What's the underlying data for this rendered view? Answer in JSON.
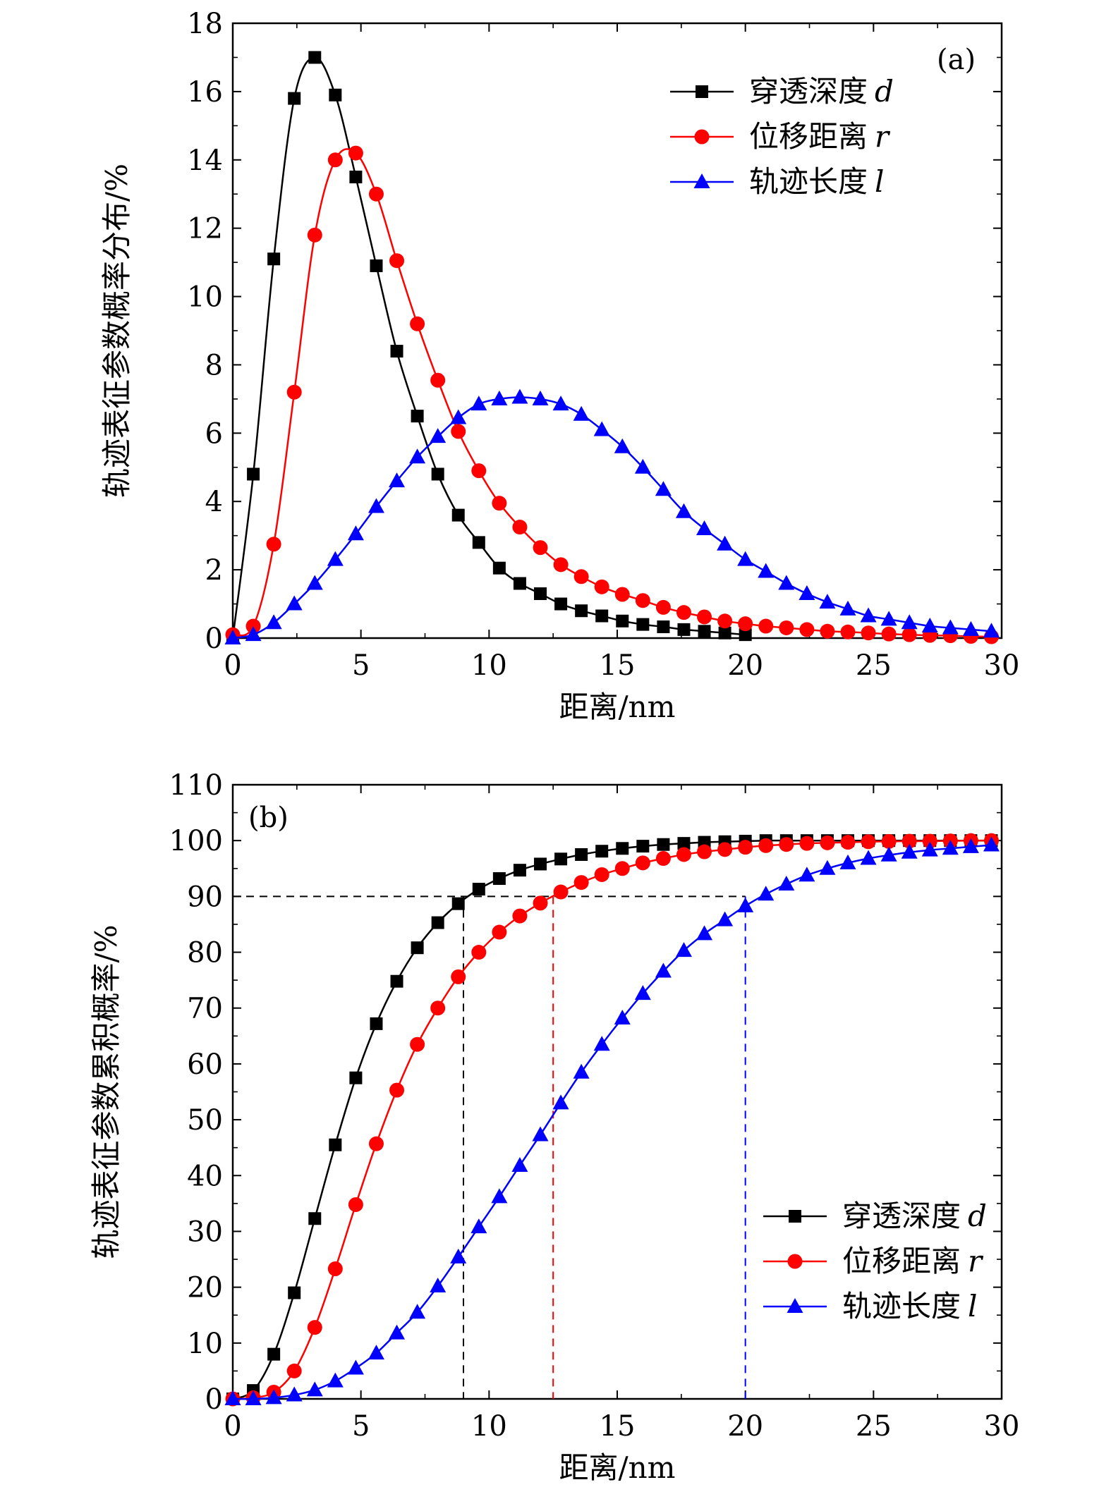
{
  "chart_data": [
    {
      "panel": "a",
      "type": "line",
      "panel_label": "(a)",
      "title": "",
      "xlabel": "距离/nm",
      "ylabel": "轨迹表征参数概率分布/%",
      "xlim": [
        0,
        30
      ],
      "ylim": [
        0,
        18
      ],
      "xticks": [
        0,
        5,
        10,
        15,
        20,
        25,
        30
      ],
      "yticks": [
        0,
        2,
        4,
        6,
        8,
        10,
        12,
        14,
        16,
        18
      ],
      "legend_position": "top-right",
      "series": [
        {
          "name": "穿透深度",
          "var": "d",
          "color": "#000000",
          "marker": "square",
          "x": [
            0,
            0.8,
            1.6,
            2.4,
            3.2,
            4.0,
            4.8,
            5.6,
            6.4,
            7.2,
            8.0,
            8.8,
            9.6,
            10.4,
            11.2,
            12.0,
            12.8,
            13.6,
            14.4,
            15.2,
            16.0,
            16.8,
            17.6,
            18.4,
            19.2,
            20.0
          ],
          "y": [
            0,
            4.8,
            11.1,
            15.8,
            17.0,
            15.9,
            13.5,
            10.9,
            8.4,
            6.5,
            4.8,
            3.6,
            2.8,
            2.05,
            1.6,
            1.3,
            1.0,
            0.8,
            0.65,
            0.5,
            0.4,
            0.33,
            0.25,
            0.2,
            0.15,
            0.1
          ]
        },
        {
          "name": "位移距离",
          "var": "r",
          "color": "#ff0000",
          "marker": "circle",
          "x": [
            0,
            0.8,
            1.6,
            2.4,
            3.2,
            4.0,
            4.8,
            5.6,
            6.4,
            7.2,
            8.0,
            8.8,
            9.6,
            10.4,
            11.2,
            12.0,
            12.8,
            13.6,
            14.4,
            15.2,
            16.0,
            16.8,
            17.6,
            18.4,
            19.2,
            20.0,
            20.8,
            21.6,
            22.4,
            23.2,
            24.0,
            24.8,
            25.6,
            26.4,
            27.2,
            28.0,
            28.8,
            29.6
          ],
          "y": [
            0.1,
            0.35,
            2.75,
            7.2,
            11.8,
            14.0,
            14.2,
            13.0,
            11.05,
            9.2,
            7.55,
            6.05,
            4.9,
            3.95,
            3.25,
            2.65,
            2.15,
            1.8,
            1.5,
            1.28,
            1.1,
            0.9,
            0.75,
            0.62,
            0.5,
            0.42,
            0.35,
            0.3,
            0.25,
            0.2,
            0.18,
            0.15,
            0.12,
            0.1,
            0.08,
            0.07,
            0.05,
            0.04
          ]
        },
        {
          "name": "轨迹长度",
          "var": "l",
          "color": "#0000ff",
          "marker": "triangle",
          "x": [
            0,
            0.8,
            1.6,
            2.4,
            3.2,
            4.0,
            4.8,
            5.6,
            6.4,
            7.2,
            8.0,
            8.8,
            9.6,
            10.4,
            11.2,
            12.0,
            12.8,
            13.6,
            14.4,
            15.2,
            16.0,
            16.8,
            17.6,
            18.4,
            19.2,
            20.0,
            20.8,
            21.6,
            22.4,
            23.2,
            24.0,
            24.8,
            25.6,
            26.4,
            27.2,
            28.0,
            28.8,
            29.6
          ],
          "y": [
            0,
            0.1,
            0.45,
            1.0,
            1.6,
            2.3,
            3.05,
            3.85,
            4.6,
            5.3,
            5.9,
            6.45,
            6.85,
            7.0,
            7.05,
            7.0,
            6.85,
            6.55,
            6.1,
            5.6,
            5.0,
            4.35,
            3.7,
            3.2,
            2.75,
            2.3,
            1.95,
            1.6,
            1.3,
            1.05,
            0.85,
            0.65,
            0.55,
            0.45,
            0.35,
            0.3,
            0.25,
            0.2
          ]
        }
      ]
    },
    {
      "panel": "b",
      "type": "line",
      "panel_label": "(b)",
      "title": "",
      "xlabel": "距离/nm",
      "ylabel": "轨迹表征参数累积概率/%",
      "xlim": [
        0,
        30
      ],
      "ylim": [
        0,
        110
      ],
      "xticks": [
        0,
        5,
        10,
        15,
        20,
        25,
        30
      ],
      "yticks": [
        0,
        10,
        20,
        30,
        40,
        50,
        60,
        70,
        80,
        90,
        100,
        110
      ],
      "legend_position": "bottom-right",
      "reference_level": 90,
      "reference_x": [
        9.0,
        12.5,
        20.0
      ],
      "series": [
        {
          "name": "穿透深度",
          "var": "d",
          "color": "#000000",
          "marker": "square",
          "x": [
            0,
            0.8,
            1.6,
            2.4,
            3.2,
            4.0,
            4.8,
            5.6,
            6.4,
            7.2,
            8.0,
            8.8,
            9.6,
            10.4,
            11.2,
            12.0,
            12.8,
            13.6,
            14.4,
            15.2,
            16.0,
            16.8,
            17.6,
            18.4,
            19.2,
            20.0,
            20.8,
            21.6,
            22.4,
            23.2,
            24.0,
            24.8,
            25.6,
            26.4,
            27.2,
            28.0,
            28.8,
            29.6
          ],
          "y": [
            0,
            1.5,
            8.0,
            19.0,
            32.3,
            45.5,
            57.5,
            67.2,
            74.8,
            80.8,
            85.3,
            88.7,
            91.3,
            93.2,
            94.7,
            95.8,
            96.7,
            97.5,
            98.1,
            98.6,
            99.0,
            99.3,
            99.5,
            99.7,
            99.8,
            99.9,
            100,
            100,
            100,
            100,
            100,
            100,
            100,
            100,
            100,
            100,
            100,
            100
          ]
        },
        {
          "name": "位移距离",
          "var": "r",
          "color": "#ff0000",
          "marker": "circle",
          "x": [
            0,
            0.8,
            1.6,
            2.4,
            3.2,
            4.0,
            4.8,
            5.6,
            6.4,
            7.2,
            8.0,
            8.8,
            9.6,
            10.4,
            11.2,
            12.0,
            12.8,
            13.6,
            14.4,
            15.2,
            16.0,
            16.8,
            17.6,
            18.4,
            19.2,
            20.0,
            20.8,
            21.6,
            22.4,
            23.2,
            24.0,
            24.8,
            25.6,
            26.4,
            27.2,
            28.0,
            28.8,
            29.6
          ],
          "y": [
            0,
            0.2,
            1.2,
            5.0,
            12.8,
            23.3,
            34.8,
            45.7,
            55.3,
            63.5,
            70.0,
            75.6,
            80.0,
            83.6,
            86.5,
            88.8,
            90.8,
            92.5,
            93.9,
            95.0,
            96.0,
            96.8,
            97.5,
            98.0,
            98.4,
            98.8,
            99.1,
            99.3,
            99.5,
            99.6,
            99.7,
            99.8,
            99.85,
            99.9,
            99.9,
            99.95,
            100,
            100
          ]
        },
        {
          "name": "轨迹长度",
          "var": "l",
          "color": "#0000ff",
          "marker": "triangle",
          "x": [
            0,
            0.8,
            1.6,
            2.4,
            3.2,
            4.0,
            4.8,
            5.6,
            6.4,
            7.2,
            8.0,
            8.8,
            9.6,
            10.4,
            11.2,
            12.0,
            12.8,
            13.6,
            14.4,
            15.2,
            16.0,
            16.8,
            17.6,
            18.4,
            19.2,
            20.0,
            20.8,
            21.6,
            22.4,
            23.2,
            24.0,
            24.8,
            25.6,
            26.4,
            27.2,
            28.0,
            28.8,
            29.6
          ],
          "y": [
            0,
            0,
            0.2,
            0.7,
            1.6,
            3.2,
            5.5,
            8.2,
            11.8,
            15.5,
            20.2,
            25.4,
            30.8,
            36.2,
            41.8,
            47.3,
            53.0,
            58.5,
            63.5,
            68.2,
            72.6,
            76.6,
            80.3,
            83.3,
            85.8,
            88.3,
            90.4,
            92.2,
            93.8,
            95.0,
            96.0,
            96.8,
            97.4,
            97.9,
            98.3,
            98.6,
            98.9,
            99.2
          ]
        }
      ]
    }
  ]
}
